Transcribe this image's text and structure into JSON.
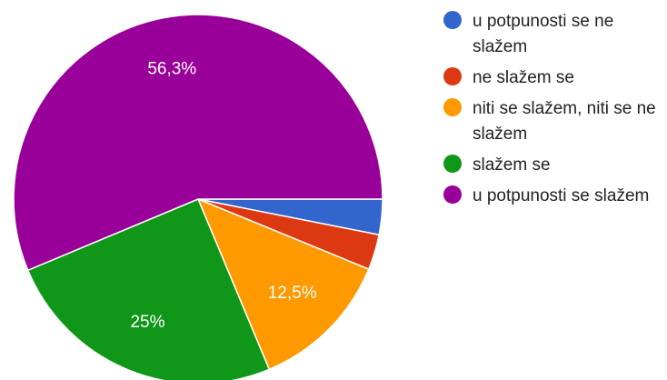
{
  "chart_data": {
    "type": "pie",
    "categories": [
      "u potpunosti se ne slažem",
      "ne slažem se",
      "niti se slažem, niti se ne slažem",
      "slažem se",
      "u potpunosti se slažem"
    ],
    "values": [
      3.1,
      3.1,
      12.5,
      25,
      56.3
    ],
    "data_labels": [
      "",
      "",
      "12,5%",
      "25%",
      "56,3%"
    ],
    "colors": [
      "#3366cc",
      "#dc3912",
      "#ff9900",
      "#109618",
      "#990099"
    ],
    "legend_position": "right"
  }
}
